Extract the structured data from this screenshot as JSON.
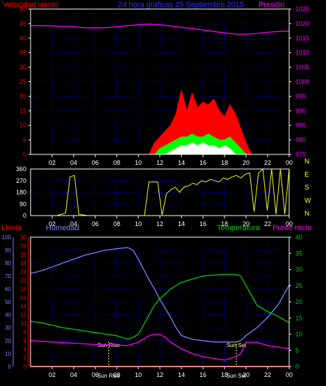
{
  "header": {
    "left": "Velocidad viento",
    "center": "24 hora graficas  25 Septiembre 2015",
    "right": "Presión"
  },
  "colors": {
    "background": "#000000",
    "frame": "#ffffff",
    "grid": "#0000c8",
    "wind_red": "#ff0000",
    "wind_green": "#00ff00",
    "wind_white": "#ffffff",
    "pressure": "#ff00ff",
    "direction": "#ffff00",
    "humidity": "#8080ff",
    "temperature": "#00d000",
    "dewpoint": "#ff00ff",
    "rain": "#ff0000",
    "sun": "#ffff80"
  },
  "chart_data": [
    {
      "type": "line",
      "name": "wind-pressure",
      "x_ticks": [
        "02",
        "04",
        "06",
        "08",
        "10",
        "12",
        "14",
        "16",
        "18",
        "20",
        "22",
        "00"
      ],
      "xlim": [
        0,
        24
      ],
      "left_axis": {
        "label": "Velocidad viento",
        "ticks": [
          0,
          5,
          10,
          15,
          20,
          25,
          30,
          35,
          40,
          45,
          50
        ],
        "ylim": [
          0,
          50
        ]
      },
      "right_axis": {
        "label": "Presión",
        "ticks": [
          975,
          980,
          985,
          990,
          995,
          1000,
          1005,
          1010,
          1015,
          1020,
          1025
        ],
        "ylim": [
          975,
          1025
        ]
      },
      "pressure": {
        "x": [
          0,
          1,
          2,
          3,
          4,
          5,
          6,
          7,
          8,
          9,
          10,
          11,
          12,
          13,
          14,
          15,
          16,
          17,
          18,
          19,
          20,
          21,
          22,
          23,
          24
        ],
        "y": [
          1019.3,
          1019.3,
          1019.2,
          1019.0,
          1018.9,
          1018.6,
          1018.5,
          1018.6,
          1018.9,
          1019.3,
          1019.6,
          1019.8,
          1019.6,
          1019.2,
          1018.7,
          1018.3,
          1017.8,
          1017.3,
          1016.8,
          1016.4,
          1016.3,
          1016.6,
          1017.0,
          1017.3,
          1017.4
        ]
      },
      "wind_gust": {
        "x": [
          11.0,
          11.5,
          12.0,
          12.5,
          13.0,
          13.5,
          14.0,
          14.5,
          15.0,
          15.5,
          16.0,
          16.5,
          17.0,
          17.5,
          18.0,
          18.5,
          19.0,
          19.5,
          20.0,
          20.5
        ],
        "y": [
          0,
          4,
          6,
          8,
          10,
          14,
          22,
          15,
          21,
          16,
          18,
          17,
          19,
          15,
          13,
          17,
          14,
          9,
          4,
          0
        ]
      },
      "wind_avg": {
        "x": [
          11.5,
          12.0,
          12.5,
          13.0,
          13.5,
          14.0,
          14.5,
          15.0,
          15.5,
          16.0,
          16.5,
          17.0,
          17.5,
          18.0,
          18.5,
          19.0,
          19.5,
          20.0
        ],
        "y": [
          0,
          2,
          3,
          4,
          5,
          6,
          6,
          7,
          6,
          6,
          7,
          6,
          5,
          5,
          6,
          4,
          2,
          0
        ]
      },
      "wind_min": {
        "x": [
          12.5,
          13.0,
          13.5,
          14.0,
          14.5,
          15.0,
          15.5,
          16.0,
          16.5,
          17.0,
          17.5,
          18.0,
          18.5,
          19.0
        ],
        "y": [
          0,
          1,
          2,
          3,
          3,
          4,
          3,
          4,
          3,
          3,
          2,
          3,
          2,
          0
        ]
      }
    },
    {
      "type": "line",
      "name": "wind-direction",
      "x_ticks": [
        "02",
        "04",
        "06",
        "08",
        "10",
        "12",
        "14",
        "16",
        "18",
        "20",
        "22",
        "00"
      ],
      "xlim": [
        0,
        24
      ],
      "left_axis": {
        "ticks": [
          0,
          90,
          180,
          270,
          360
        ],
        "ylim": [
          0,
          360
        ]
      },
      "right_axis": {
        "labels": [
          "N",
          "W",
          "S",
          "E",
          "N"
        ]
      },
      "y": [
        0,
        0,
        0,
        0,
        0,
        0,
        0,
        10,
        20,
        300,
        310,
        10,
        5,
        0,
        0,
        0,
        0,
        0,
        0,
        0,
        0,
        0,
        0,
        0,
        0,
        0,
        0,
        260,
        260,
        260,
        5,
        170,
        200,
        220,
        180,
        220,
        230,
        250,
        240,
        270,
        260,
        280,
        270,
        260,
        290,
        280,
        300,
        310,
        290,
        320,
        330,
        30,
        330,
        360,
        40,
        360,
        10,
        360,
        10,
        360
      ]
    },
    {
      "type": "line",
      "name": "rain-humidity-temp-dew",
      "x_ticks": [
        "02",
        "04",
        "06",
        "08",
        "10",
        "12",
        "14",
        "16",
        "18",
        "20",
        "22",
        "00"
      ],
      "xlim": [
        0,
        24
      ],
      "labels": {
        "rain": "Lluvia",
        "humidity": "Humedad",
        "temperature": "Temperatura",
        "dewpoint": "Punto rocío"
      },
      "humidity_axis": {
        "ticks": [
          0,
          10,
          20,
          30,
          40,
          50,
          60,
          70,
          80,
          90,
          100
        ],
        "ylim": [
          0,
          100
        ]
      },
      "rain_axis": {
        "ticks": [
          0,
          2,
          4,
          6,
          8,
          10,
          12,
          14,
          16,
          18,
          20,
          22,
          24,
          26,
          28,
          30
        ],
        "ylim": [
          0,
          30
        ]
      },
      "temp_axis": {
        "ticks": [
          0,
          5,
          10,
          15,
          20,
          25,
          30,
          35,
          40
        ],
        "ylim": [
          0,
          40
        ]
      },
      "annotations": {
        "sunrise_top": "Sun Rise",
        "sunrise_bottom": "Sun Rise",
        "sunset_top": "Sun Set",
        "sunset_bottom": "Sun Set",
        "sunrise_x": 7.25,
        "sunset_x": 19.1
      },
      "humidity": {
        "x": [
          0,
          1,
          2,
          3,
          4,
          5,
          6,
          7,
          8,
          9,
          9.5,
          10,
          10.5,
          11,
          11.5,
          12,
          12.5,
          13,
          13.5,
          14,
          15,
          16,
          17,
          18,
          19,
          19.5,
          20,
          21,
          22,
          23,
          24
        ],
        "y": [
          72,
          74,
          77,
          80,
          83,
          86,
          88,
          90,
          91,
          92,
          90,
          83,
          75,
          67,
          60,
          52,
          45,
          38,
          30,
          24,
          21,
          20,
          19,
          19,
          19,
          20,
          24,
          30,
          38,
          48,
          63
        ]
      },
      "temperature": {
        "x": [
          0,
          1,
          2,
          3,
          4,
          5,
          6,
          7,
          8,
          9,
          9.5,
          10,
          10.5,
          11,
          11.5,
          12,
          13,
          14,
          15,
          16,
          17,
          18,
          19,
          19.5,
          20,
          20.5,
          21,
          22,
          23,
          24
        ],
        "y": [
          14,
          13.5,
          12.8,
          12,
          11.5,
          11,
          10.5,
          10,
          9.5,
          8.5,
          9,
          10,
          13,
          16,
          19,
          21,
          24,
          26,
          27,
          28,
          28.3,
          28.5,
          28.5,
          28,
          25,
          22,
          19,
          17,
          15.5,
          13.5
        ]
      },
      "dewpoint": {
        "x": [
          0,
          1,
          2,
          3,
          4,
          5,
          6,
          7,
          8,
          9,
          10,
          11,
          11.5,
          12,
          12.5,
          13,
          14,
          15,
          16,
          17,
          18,
          19,
          19.5,
          20,
          21,
          22,
          23,
          24
        ],
        "y": [
          8,
          7.8,
          7.6,
          7.4,
          7.2,
          7,
          6.8,
          6.7,
          6.6,
          6.5,
          7.5,
          9.5,
          10,
          10,
          9,
          7.5,
          5.5,
          4,
          3,
          2.5,
          2,
          3,
          4,
          7.5,
          7.5,
          6.5,
          6,
          5.5
        ]
      },
      "rain": {
        "x": [
          0,
          24
        ],
        "y": [
          0,
          0
        ]
      }
    }
  ]
}
